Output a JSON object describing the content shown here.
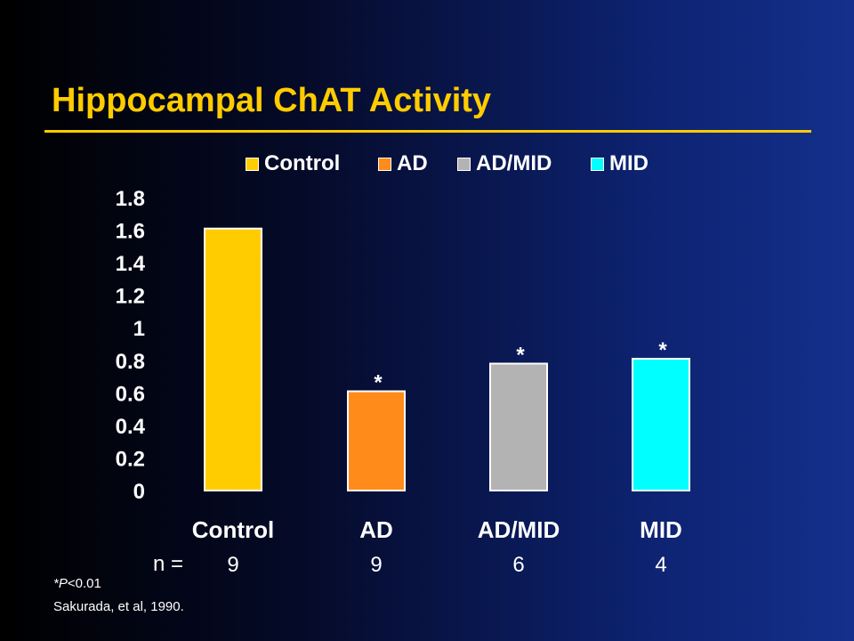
{
  "title": "Hippocampal ChAT Activity",
  "footnotes": {
    "p_italic": "P",
    "p_prefix": "*",
    "p_suffix": "<0.01",
    "citation": "Sakurada, et al, 1990."
  },
  "n_label": "n =",
  "chart_data": {
    "type": "bar",
    "categories": [
      "Control",
      "AD",
      "AD/MID",
      "MID"
    ],
    "values": [
      1.61,
      0.61,
      0.78,
      0.81
    ],
    "n": [
      "9",
      "9",
      "6",
      "4"
    ],
    "significance": [
      "",
      "*",
      "*",
      "*"
    ],
    "ylim": [
      0,
      1.8
    ],
    "yticks": [
      {
        "value": 0,
        "label": "0"
      },
      {
        "value": 0.2,
        "label": "0.2"
      },
      {
        "value": 0.4,
        "label": "0.4"
      },
      {
        "value": 0.6,
        "label": "0.6"
      },
      {
        "value": 0.8,
        "label": "0.8"
      },
      {
        "value": 1.0,
        "label": "1"
      },
      {
        "value": 1.2,
        "label": "1.2"
      },
      {
        "value": 1.4,
        "label": "1.4"
      },
      {
        "value": 1.6,
        "label": "1.6"
      },
      {
        "value": 1.8,
        "label": "1.8"
      }
    ],
    "colors": [
      "#ffcc00",
      "#ff8c1a",
      "#b3b3b3",
      "#00ffff"
    ],
    "legend": [
      "Control",
      "AD",
      "AD/MID",
      "MID"
    ],
    "legend_position": "top",
    "grid": false,
    "title": "",
    "xlabel": "",
    "ylabel": ""
  }
}
